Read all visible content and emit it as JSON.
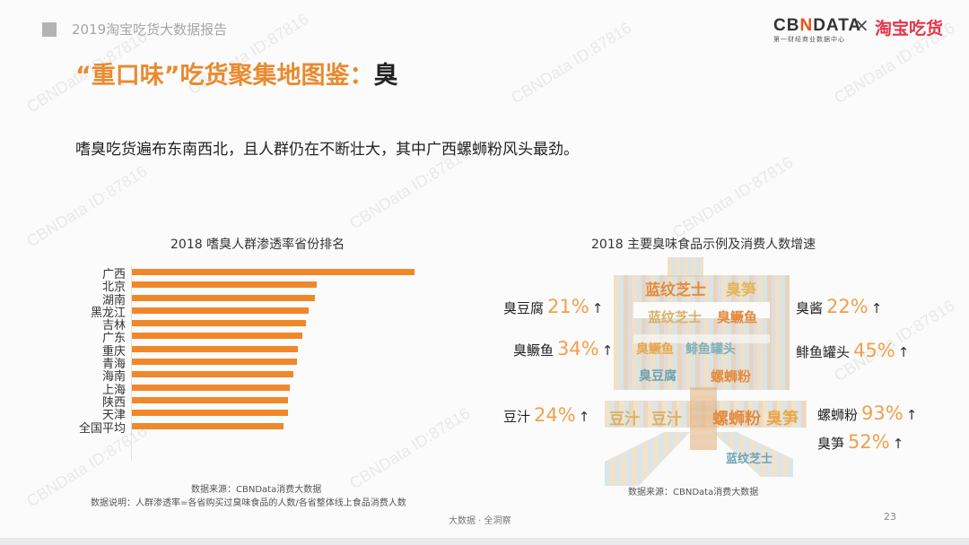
{
  "header": {
    "report_title": "2019淘宝吃货大数据报告",
    "logo_cbn_left": "CB",
    "logo_cbn_n": "N",
    "logo_cbn_right": "DATA",
    "logo_cbn_sub": "第一财经商业数据中心",
    "logo_x": "×",
    "logo_partner": "淘宝吃货"
  },
  "title": {
    "main": "“重口味”吃货聚集地图鉴：",
    "highlight": "臭"
  },
  "subtitle": "嗜臭吃货遍布东南西北，且人群仍在不断壮大，其中广西螺蛳粉风头最劲。",
  "left_chart": {
    "title": "2018 嗜臭人群渗透率省份排名",
    "source": "数据来源：CBNData消费大数据",
    "note": "数据说明：人群渗透率=各省购买过臭味食品的人数/各省整体线上食品消费人数"
  },
  "right_chart": {
    "title": "2018 主要臭味食品示例及消费人数增速",
    "source": "数据来源：CBNData消费大数据",
    "stats": [
      {
        "name": "臭豆腐",
        "pct": "21%",
        "arrow": "↑"
      },
      {
        "name": "臭鳜鱼",
        "pct": "34%",
        "arrow": "↑"
      },
      {
        "name": "豆汁",
        "pct": "24%",
        "arrow": "↑"
      },
      {
        "name": "臭酱",
        "pct": "22%",
        "arrow": "↑"
      },
      {
        "name": "鲱鱼罐头",
        "pct": "45%",
        "arrow": "↑"
      },
      {
        "name": "螺蛳粉",
        "pct": "93%",
        "arrow": "↑"
      },
      {
        "name": "臭笋",
        "pct": "52%",
        "arrow": "↑"
      }
    ],
    "wordcloud_words": [
      "蓝纹芝士",
      "臭笋",
      "臭鳜鱼",
      "鲱鱼罐头",
      "臭豆腐",
      "螺蛳粉",
      "豆汁",
      "臭酱"
    ]
  },
  "footer": {
    "center": "大数据 · 全洞察",
    "page": "23"
  },
  "watermark": "CBNData ID:87816",
  "chart_data": [
    {
      "type": "bar",
      "orientation": "horizontal",
      "title": "2018 嗜臭人群渗透率省份排名",
      "categories": [
        "广西",
        "北京",
        "湖南",
        "黑龙江",
        "吉林",
        "广东",
        "重庆",
        "青海",
        "海南",
        "上海",
        "陕西",
        "天津",
        "全国平均"
      ],
      "values": [
        315,
        206,
        204,
        197,
        194,
        190,
        185,
        184,
        180,
        176,
        174,
        174,
        169
      ],
      "value_unit": "relative bar length (no axis labels shown)",
      "xlabel": "",
      "ylabel": "",
      "grid": false,
      "color": "#f0882a"
    },
    {
      "type": "table",
      "title": "2018 主要臭味食品示例及消费人数增速",
      "categories": [
        "臭豆腐",
        "臭鳜鱼",
        "豆汁",
        "臭酱",
        "鲱鱼罐头",
        "螺蛳粉",
        "臭笋"
      ],
      "values": [
        21,
        34,
        24,
        22,
        45,
        93,
        52
      ],
      "value_unit": "% growth"
    }
  ]
}
